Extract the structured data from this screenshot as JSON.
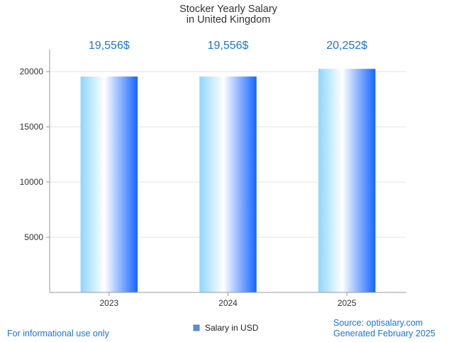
{
  "chart_data": {
    "type": "bar",
    "title": [
      "Stocker Yearly Salary",
      "in United Kingdom"
    ],
    "categories": [
      "2023",
      "2024",
      "2025"
    ],
    "series": [
      {
        "name": "Salary in USD",
        "values": [
          19556,
          19556,
          20252
        ]
      }
    ],
    "data_labels": [
      "19,556$",
      "19,556$",
      "20,252$"
    ],
    "y_ticks": [
      5000,
      10000,
      15000,
      20000
    ],
    "ylim": [
      0,
      22000
    ],
    "xlabel": "",
    "ylabel": "",
    "grid": true,
    "legend_position": "bottom-center",
    "colors": {
      "bar_light": "#ffffff",
      "bar_mid": "#8fd6fb",
      "bar_dark": "#1565ff",
      "label": "#1a73e8",
      "grid": "#e3e3e3",
      "axis": "#999999"
    }
  },
  "footer": {
    "left": "For informational use only",
    "source": "Source: optisalary.com",
    "generated": "Generated February 2025"
  }
}
